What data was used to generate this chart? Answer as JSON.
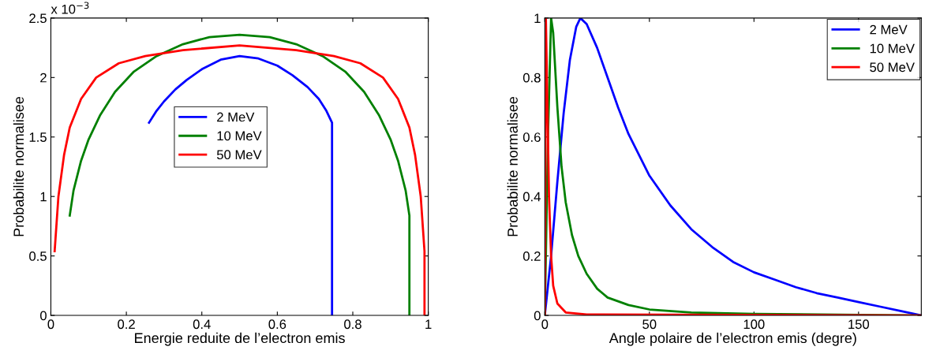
{
  "chart_data": [
    {
      "type": "line",
      "xlabel": "Energie reduite de l’electron emis",
      "ylabel": "Probabilite normalisee",
      "annotations": [
        "x 10$^{−3}$"
      ],
      "xlim": [
        0,
        1
      ],
      "xticks": [
        0,
        0.2,
        0.4,
        0.6,
        0.8,
        1
      ],
      "ylim": [
        0,
        2.5
      ],
      "yticks": [
        0,
        0.5,
        1,
        1.5,
        2,
        2.5
      ],
      "grid": false,
      "legend": "center",
      "series": [
        {
          "name": "2 MeV",
          "color": "#0000ff",
          "x": [
            0.26,
            0.28,
            0.3,
            0.33,
            0.36,
            0.4,
            0.45,
            0.5,
            0.55,
            0.6,
            0.64,
            0.68,
            0.71,
            0.73,
            0.745,
            0.745
          ],
          "values": [
            1.62,
            1.72,
            1.8,
            1.9,
            1.98,
            2.07,
            2.15,
            2.18,
            2.16,
            2.1,
            2.02,
            1.92,
            1.82,
            1.72,
            1.62,
            0
          ]
        },
        {
          "name": "10 MeV",
          "color": "#008000",
          "x": [
            0.05,
            0.06,
            0.08,
            0.1,
            0.13,
            0.17,
            0.22,
            0.28,
            0.35,
            0.42,
            0.5,
            0.58,
            0.65,
            0.72,
            0.78,
            0.83,
            0.87,
            0.9,
            0.92,
            0.94,
            0.95,
            0.95
          ],
          "values": [
            0.84,
            1.05,
            1.3,
            1.48,
            1.68,
            1.88,
            2.05,
            2.18,
            2.28,
            2.34,
            2.36,
            2.34,
            2.28,
            2.18,
            2.05,
            1.88,
            1.68,
            1.48,
            1.3,
            1.05,
            0.84,
            0
          ]
        },
        {
          "name": "50 MeV",
          "color": "#ff0000",
          "x": [
            0.01,
            0.02,
            0.035,
            0.05,
            0.08,
            0.12,
            0.18,
            0.25,
            0.35,
            0.5,
            0.65,
            0.75,
            0.82,
            0.88,
            0.92,
            0.95,
            0.965,
            0.98,
            0.99,
            0.99
          ],
          "values": [
            0.54,
            1.0,
            1.35,
            1.58,
            1.82,
            2.0,
            2.12,
            2.18,
            2.23,
            2.27,
            2.23,
            2.18,
            2.12,
            2.0,
            1.82,
            1.58,
            1.35,
            1.0,
            0.54,
            0
          ]
        }
      ]
    },
    {
      "type": "line",
      "xlabel": "Angle polaire de l’electron emis (degre)",
      "ylabel": "Probabilite normalisee",
      "xlim": [
        0,
        180
      ],
      "xticks": [
        0,
        50,
        100,
        150
      ],
      "ylim": [
        0,
        1
      ],
      "yticks": [
        0,
        0.2,
        0.4,
        0.6,
        0.8,
        1
      ],
      "grid": false,
      "legend": "top right",
      "series": [
        {
          "name": "2 MeV",
          "color": "#0000ff",
          "x": [
            0,
            3,
            6,
            9,
            12,
            15,
            17,
            20,
            25,
            30,
            35,
            40,
            45,
            50,
            60,
            70,
            80,
            90,
            100,
            110,
            120,
            130,
            140,
            150,
            160,
            170,
            180
          ],
          "values": [
            0,
            0.2,
            0.45,
            0.68,
            0.86,
            0.97,
            1.0,
            0.98,
            0.9,
            0.8,
            0.7,
            0.61,
            0.54,
            0.47,
            0.37,
            0.29,
            0.23,
            0.18,
            0.145,
            0.12,
            0.095,
            0.075,
            0.06,
            0.045,
            0.03,
            0.015,
            0
          ]
        },
        {
          "name": "10 MeV",
          "color": "#008000",
          "x": [
            0,
            1.5,
            3,
            4,
            6,
            8,
            10,
            13,
            16,
            20,
            25,
            30,
            40,
            50,
            70,
            100,
            180
          ],
          "values": [
            0,
            0.6,
            1.0,
            0.95,
            0.7,
            0.5,
            0.38,
            0.27,
            0.2,
            0.14,
            0.09,
            0.06,
            0.035,
            0.02,
            0.01,
            0.005,
            0
          ]
        },
        {
          "name": "50 MeV",
          "color": "#ff0000",
          "x": [
            0,
            0.5,
            1,
            2,
            3,
            4,
            6,
            10,
            20,
            180
          ],
          "values": [
            0,
            1.0,
            0.8,
            0.4,
            0.2,
            0.1,
            0.04,
            0.01,
            0.003,
            0
          ]
        }
      ]
    }
  ]
}
